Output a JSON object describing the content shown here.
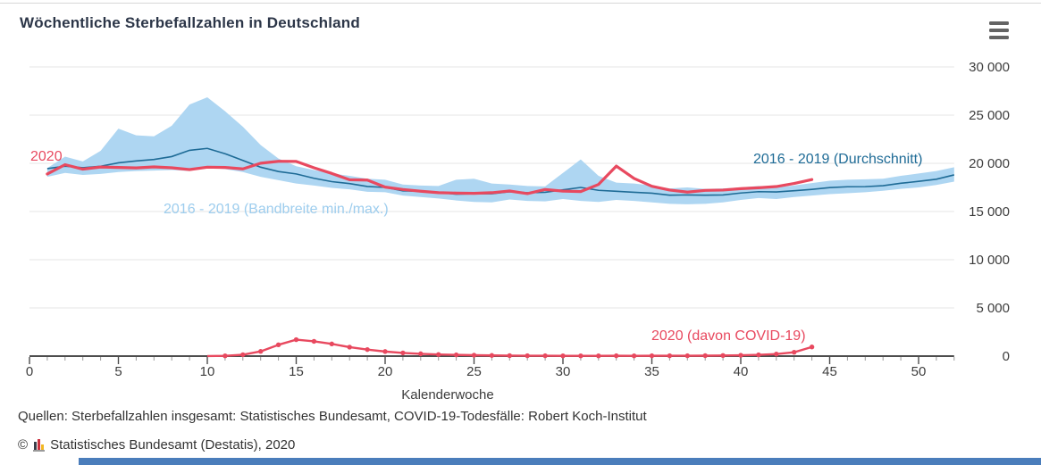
{
  "header": {
    "title": "Wöchentliche Sterbefallzahlen in Deutschland"
  },
  "menu": {
    "icon": "hamburger-icon",
    "color": "#636363"
  },
  "chart_data": {
    "type": "line",
    "title": "Wöchentliche Sterbefallzahlen in Deutschland",
    "xlabel": "Kalenderwoche",
    "ylabel": "",
    "xlim": [
      0,
      52
    ],
    "ylim": [
      0,
      30000
    ],
    "grid": "horizontal",
    "legend_position": "inline-labels",
    "y_axis": {
      "side": "right",
      "ticks": [
        {
          "value": 0,
          "label": "0"
        },
        {
          "value": 5000,
          "label": "5 000"
        },
        {
          "value": 10000,
          "label": "10 000"
        },
        {
          "value": 15000,
          "label": "15 000"
        },
        {
          "value": 20000,
          "label": "20 000"
        },
        {
          "value": 25000,
          "label": "25 000"
        },
        {
          "value": 30000,
          "label": "30 000"
        }
      ]
    },
    "x_axis": {
      "max": 52,
      "minor_step": 1,
      "major_ticks": [
        {
          "value": 0,
          "label": "0"
        },
        {
          "value": 5,
          "label": "5"
        },
        {
          "value": 10,
          "label": "10"
        },
        {
          "value": 15,
          "label": "15"
        },
        {
          "value": 20,
          "label": "20"
        },
        {
          "value": 25,
          "label": "25"
        },
        {
          "value": 30,
          "label": "30"
        },
        {
          "value": 35,
          "label": "35"
        },
        {
          "value": 40,
          "label": "40"
        },
        {
          "value": 45,
          "label": "45"
        },
        {
          "value": 50,
          "label": "50"
        }
      ]
    },
    "series": [
      {
        "name": "2016 - 2019 (Bandbreite min./max.)",
        "type": "band",
        "color": "#aed6f2",
        "start_week": 1,
        "min": [
          18600,
          19000,
          18800,
          18900,
          19100,
          19200,
          19250,
          19300,
          19200,
          19550,
          19400,
          19100,
          18600,
          18250,
          17900,
          17700,
          17450,
          17300,
          17050,
          17000,
          16650,
          16500,
          16350,
          16150,
          16000,
          15950,
          16250,
          16100,
          16050,
          16300,
          16100,
          16000,
          16200,
          16100,
          15950,
          15800,
          15750,
          15800,
          15950,
          16200,
          16400,
          16300,
          16500,
          16650,
          16800,
          16900,
          17000,
          17150,
          17350,
          17500,
          17750,
          18100
        ],
        "max": [
          19500,
          20700,
          20200,
          21300,
          23600,
          22900,
          22800,
          23900,
          26100,
          26850,
          25400,
          23800,
          21900,
          20500,
          19700,
          19300,
          18950,
          18700,
          18400,
          18300,
          17800,
          17700,
          17650,
          18300,
          18400,
          17900,
          17800,
          17650,
          17600,
          19000,
          20400,
          18700,
          18000,
          17900,
          17700,
          17400,
          17500,
          17350,
          17400,
          17500,
          17650,
          17500,
          17700,
          17950,
          18200,
          18300,
          18350,
          18400,
          18700,
          18950,
          19200,
          19600
        ]
      },
      {
        "name": "2016 - 2019 (Durchschnitt)",
        "type": "line",
        "color": "#1e6b96",
        "start_week": 1,
        "values": [
          19450,
          19700,
          19550,
          19700,
          20050,
          20250,
          20400,
          20700,
          21350,
          21550,
          21000,
          20300,
          19600,
          19150,
          18900,
          18450,
          18100,
          17900,
          17600,
          17500,
          17150,
          17100,
          17000,
          16800,
          16850,
          16850,
          17050,
          16950,
          17000,
          17250,
          17500,
          17200,
          17100,
          17000,
          16900,
          16700,
          16720,
          16700,
          16720,
          16920,
          17060,
          17030,
          17160,
          17300,
          17480,
          17570,
          17580,
          17680,
          17930,
          18130,
          18350,
          18800
        ]
      },
      {
        "name": "2020",
        "type": "line",
        "color": "#e8495f",
        "start_week": 1,
        "values": [
          18894,
          19861,
          19397,
          19616,
          19571,
          19525,
          19629,
          19538,
          19350,
          19602,
          19574,
          19424,
          20013,
          20207,
          20202,
          19540,
          18951,
          18297,
          18266,
          17536,
          17283,
          17104,
          16959,
          16913,
          16884,
          16953,
          17131,
          16860,
          17288,
          17120,
          17072,
          17808,
          19714,
          18429,
          17620,
          17227,
          17016,
          17193,
          17226,
          17370,
          17466,
          17591,
          17908,
          18319
        ]
      },
      {
        "name": "2020 (davon COVID-19)",
        "type": "line-markers",
        "color": "#e8495f",
        "start_week": 1,
        "values": [
          0,
          0,
          0,
          0,
          0,
          0,
          0,
          0,
          0,
          8,
          31,
          149,
          488,
          1173,
          1705,
          1532,
          1263,
          931,
          681,
          475,
          334,
          242,
          167,
          128,
          92,
          70,
          54,
          41,
          36,
          31,
          26,
          30,
          34,
          29,
          34,
          40,
          36,
          46,
          61,
          86,
          130,
          215,
          400,
          950
        ]
      }
    ]
  },
  "footer": {
    "sources": "Quellen: Sterbefallzahlen insgesamt: Statistisches Bundesamt, COVID-19-Todesfälle: Robert Koch-Institut",
    "copyright_symbol": "©",
    "copyright": "Statistisches Bundesamt (Destatis), 2020"
  },
  "colors": {
    "band": "#aed6f2",
    "average_line": "#1e6b96",
    "line_2020": "#e8495f",
    "grid": "#e4e4e4",
    "axis": "#4d4d4d",
    "footer_bar": "#4a7dbb",
    "title_text": "#2c3648"
  }
}
